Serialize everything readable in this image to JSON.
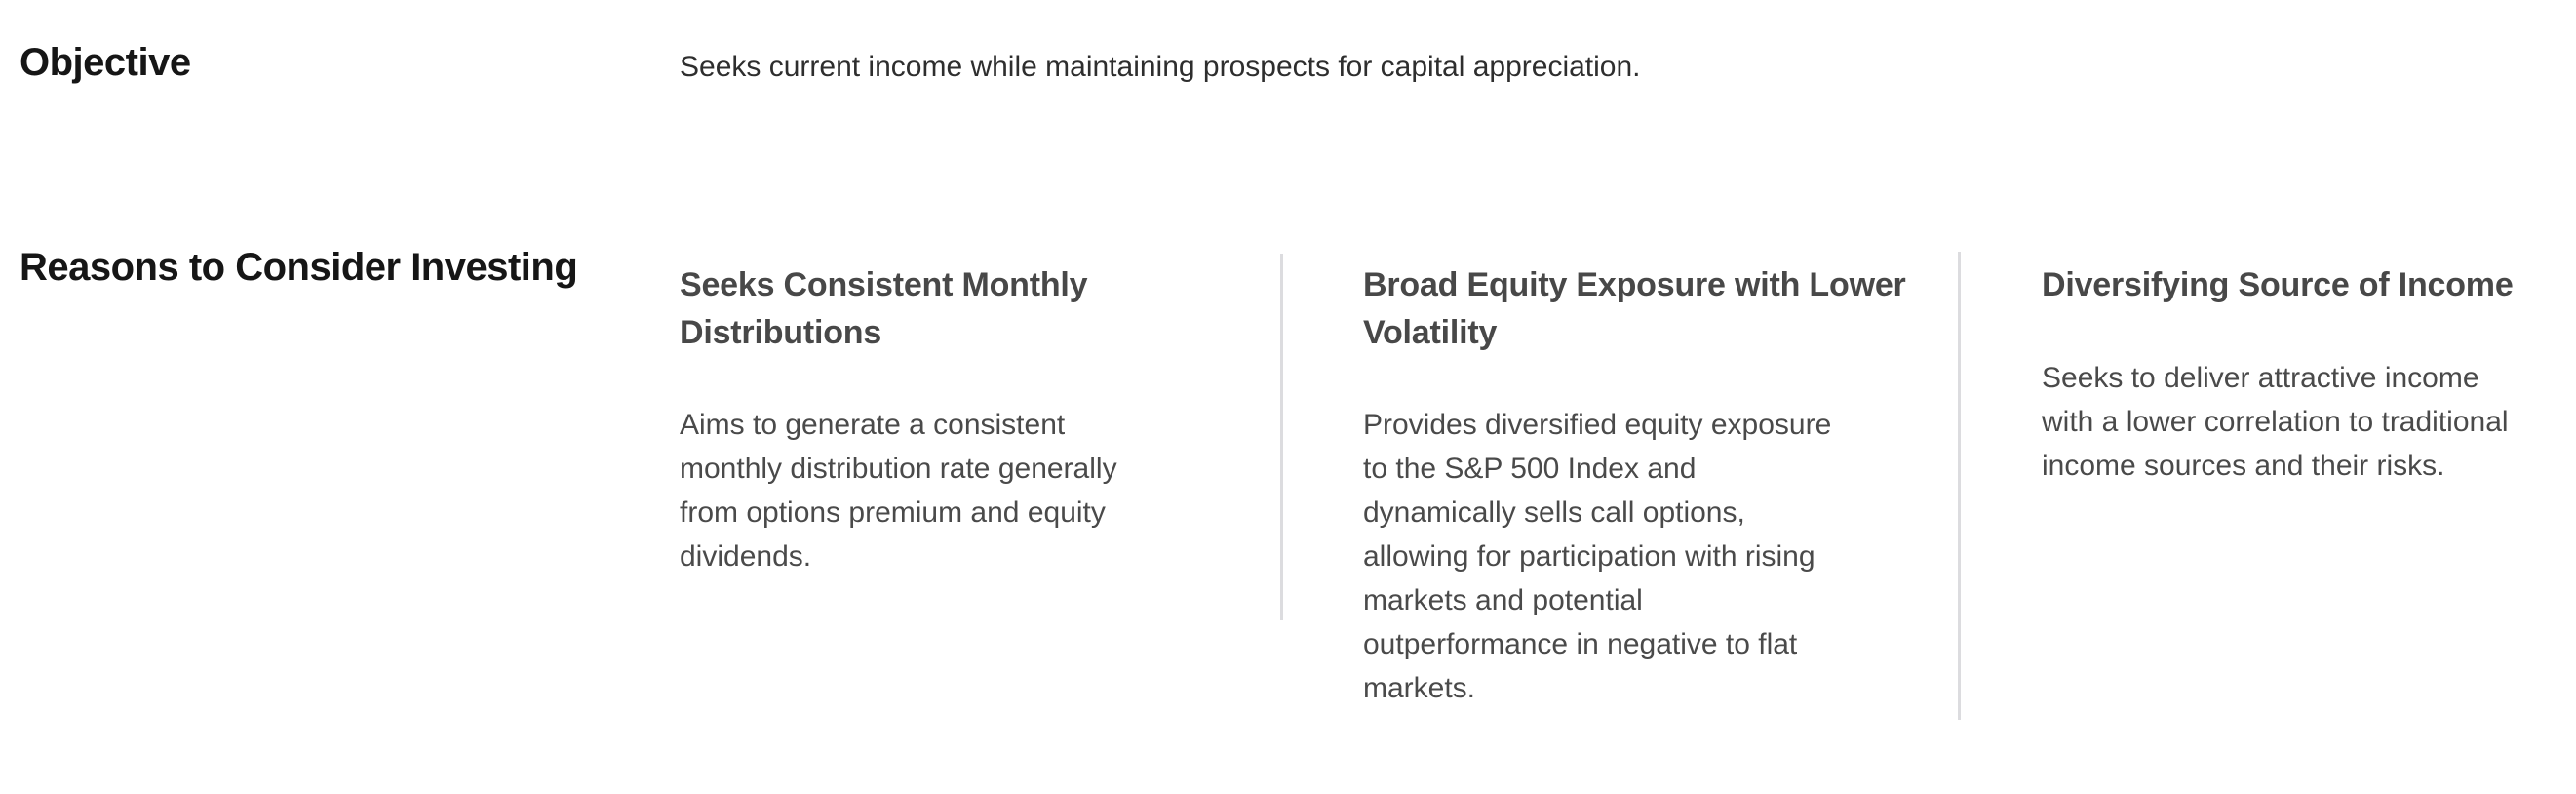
{
  "objective": {
    "label": "Objective",
    "text": "Seeks current income while maintaining prospects for capital appreciation."
  },
  "reasons": {
    "label": "Reasons to Consider Investing",
    "columns": [
      {
        "heading": "Seeks Consistent Monthly\nDistributions",
        "body": "Aims to generate a consistent\nmonthly distribution rate generally\nfrom options premium and equity\ndividends."
      },
      {
        "heading": "Broad Equity Exposure with Lower\nVolatility",
        "body": "Provides diversified equity exposure\nto the S&P 500 Index and\ndynamically sells call options,\nallowing for participation with rising\nmarkets and potential\noutperformance in negative to flat\nmarkets."
      },
      {
        "heading": "Diversifying Source of Income",
        "body": "Seeks to deliver attractive income\nwith a lower correlation to traditional\nincome sources and their risks."
      }
    ]
  },
  "colors": {
    "background": "#ffffff",
    "section_label": "#161616",
    "column_heading": "#484848",
    "body_text": "#4a4a4a",
    "divider": "#dcdcdf"
  }
}
